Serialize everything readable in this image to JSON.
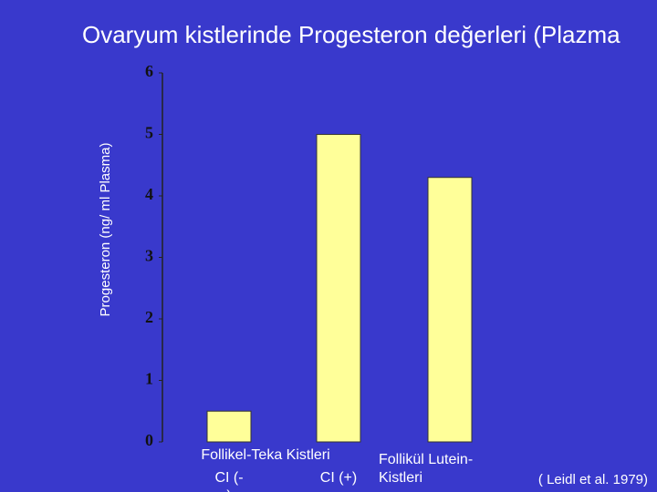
{
  "chart_data": {
    "type": "bar",
    "title": "Ovaryum kistlerinde Progesteron değerleri (Plazma",
    "y_label": "Progesteron (ng/ ml Plasma)",
    "group_label": "Follikel-Teka Kistleri",
    "categories": [
      "CI (-)",
      "CI (+)",
      "Follikül Lutein-Kistleri"
    ],
    "values": [
      0.5,
      5,
      4.3
    ],
    "color": "#ffff99",
    "ylim": [
      0,
      6
    ],
    "yticks": [
      0,
      1,
      2,
      3,
      4,
      5,
      6
    ],
    "source": "( Leidl et al. 1979)"
  }
}
